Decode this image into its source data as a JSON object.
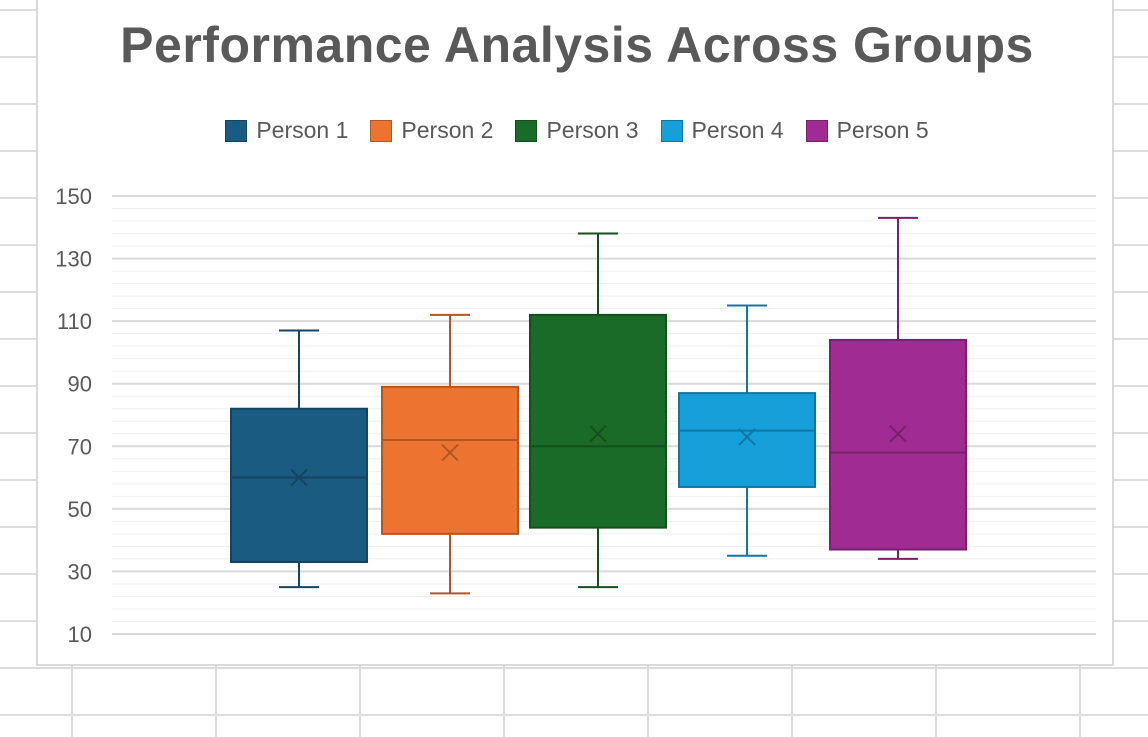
{
  "chart_data": {
    "type": "boxplot",
    "title": "Performance Analysis Across Groups",
    "xlabel": "",
    "ylabel": "",
    "ylim": [
      10,
      150
    ],
    "yticks": [
      10,
      30,
      50,
      70,
      90,
      110,
      130,
      150
    ],
    "grid": true,
    "legend_position": "top-center",
    "series": [
      {
        "name": "Person 1",
        "min": 25,
        "q1": 33,
        "median": 60,
        "q3": 82,
        "max": 107,
        "mean": 60,
        "color": "#1a5b82"
      },
      {
        "name": "Person 2",
        "min": 23,
        "q1": 42,
        "median": 72,
        "q3": 89,
        "max": 112,
        "mean": 68,
        "color": "#ec7430"
      },
      {
        "name": "Person 3",
        "min": 25,
        "q1": 44,
        "median": 70,
        "q3": 112,
        "max": 138,
        "mean": 74,
        "color": "#1a6b28"
      },
      {
        "name": "Person 4",
        "min": 35,
        "q1": 57,
        "median": 75,
        "q3": 87,
        "max": 115,
        "mean": 73,
        "color": "#169fd8"
      },
      {
        "name": "Person 5",
        "min": 34,
        "q1": 37,
        "median": 68,
        "q3": 104,
        "max": 143,
        "mean": 74,
        "color": "#a02b92"
      }
    ]
  }
}
